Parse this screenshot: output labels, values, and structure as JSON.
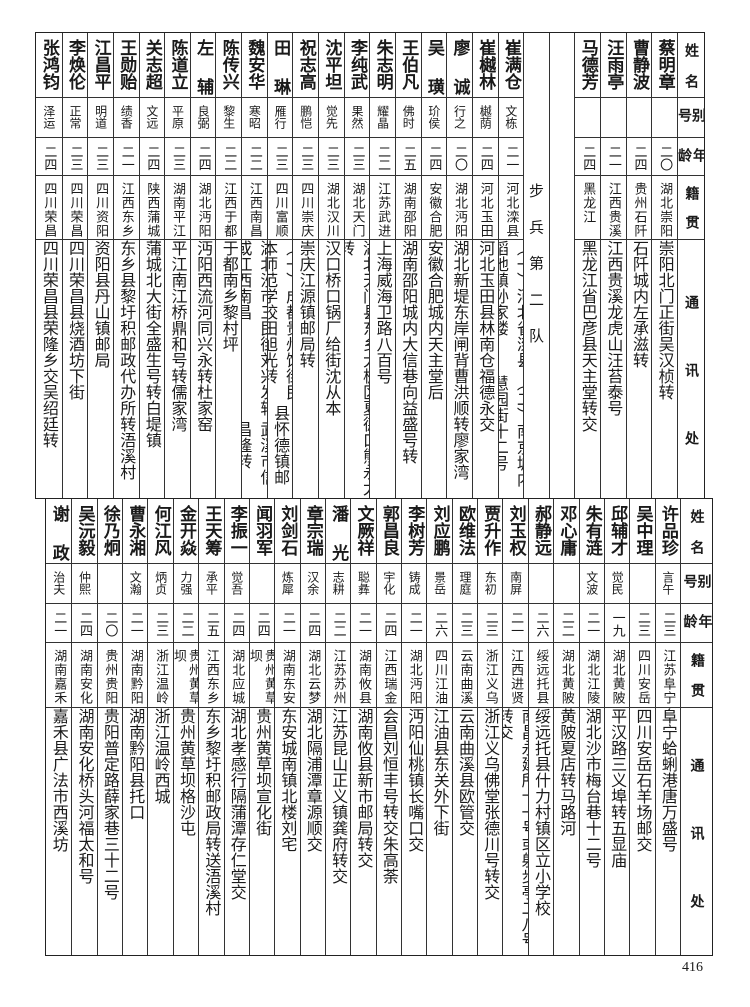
{
  "header": {
    "name": "姓名",
    "alias": "别号",
    "age": "年龄",
    "native": "籍贯",
    "address": "通讯处"
  },
  "top": {
    "section_label": "步兵第二队",
    "rows_before_section": [
      {
        "name": "蔡明章",
        "alias": "",
        "age": "二〇",
        "native": "湖北崇阳",
        "address": [
          "崇阳北门正街吴汉桢转"
        ]
      },
      {
        "name": "曹静波",
        "alias": "",
        "age": "二四",
        "native": "贵州石阡",
        "address": [
          "石阡城内左承滋转"
        ]
      },
      {
        "name": "汪雨亭",
        "alias": "",
        "age": "二一",
        "native": "江西贵溪",
        "address": [
          "江西贵溪龙虎山汪苔泰号"
        ]
      },
      {
        "name": "马德芳",
        "alias": "",
        "age": "二四",
        "native": "黑龙江",
        "address": [
          "黑龙江省巴彦县天主堂转交"
        ]
      }
    ],
    "rows_after_section": [
      {
        "name": "崔满仓",
        "alias": "文栋",
        "age": "二一",
        "native": "河北滦县",
        "address": [
          "（一）河北省滦县稻地镇孙家楼",
          "（二）南京城内慧园街十二号"
        ]
      },
      {
        "name": "崔樾林",
        "alias": "樾荫",
        "age": "二四",
        "native": "河北玉田",
        "address": [
          "河北玉田县林南仓福德永交"
        ]
      },
      {
        "name": "廖诚",
        "alias": "行之",
        "age": "二〇",
        "native": "湖北沔阳",
        "address": [
          "湖北新堤东岸闸背曹洪顺转廖家湾"
        ]
      },
      {
        "name": "吴璜",
        "alias": "玠侯",
        "age": "二四",
        "native": "安徽合肥",
        "address": [
          "安徽合肥城内天主堂后"
        ]
      },
      {
        "name": "王伯凡",
        "alias": "佛时",
        "age": "二五",
        "native": "湖南邵阳",
        "address": [
          "湖南邵阳城内大信巷向益盛号转"
        ]
      },
      {
        "name": "朱志明",
        "alias": "耀晶",
        "age": "二二",
        "native": "江苏武进",
        "address": [
          "上海威海卫路八百号"
        ]
      },
      {
        "name": "李纯武",
        "alias": "果然",
        "age": "二三",
        "native": "湖北天门",
        "address": [
          "湖北天门县东乡大板区夏德口熊永太转"
        ]
      },
      {
        "name": "沈平坦",
        "alias": "觉先",
        "age": "二三",
        "native": "湖北汉川",
        "address": [
          "汉口桥口锅厂给街沈从本"
        ]
      },
      {
        "name": "祝志高",
        "alias": "鹏恺",
        "age": "二三",
        "native": "四川崇庆",
        "address": [
          "崇庆江源镇邮局转"
        ]
      },
      {
        "name": "田琳",
        "alias": "雁行",
        "age": "二三",
        "native": "四川富顺",
        "address": [
          "（一）成都贵州馆街民本师范学校田旭光转",
          "（二）富顺县怀德镇邮转"
        ]
      },
      {
        "name": "魏安华",
        "alias": "寒昭",
        "age": "二二",
        "native": "江西南昌",
        "address": [
          "湖北沙市三民街刘兴发转或江西南昌",
          "武溪市信昌隆转"
        ]
      },
      {
        "name": "陈传兴",
        "alias": "黎生",
        "age": "二二",
        "native": "江西于都",
        "address": [
          "于都南乡黎村坪"
        ]
      },
      {
        "name": "左辅",
        "alias": "良弼",
        "age": "二四",
        "native": "湖北沔阳",
        "address": [
          "沔阳西流河同兴永转杜家窑"
        ]
      },
      {
        "name": "陈道立",
        "alias": "平原",
        "age": "二三",
        "native": "湖南平江",
        "address": [
          "平江南江桥鼎和号转儒家湾"
        ]
      },
      {
        "name": "关志超",
        "alias": "文远",
        "age": "二四",
        "native": "陕西蒲城",
        "address": [
          "蒲城北大街全盛生号转白堤镇"
        ]
      },
      {
        "name": "王勋贻",
        "alias": "绩香",
        "age": "二一",
        "native": "江西东乡",
        "address": [
          "东乡县黎圩积邮政代办所转浯溪村"
        ]
      },
      {
        "name": "江昌平",
        "alias": "明道",
        "age": "二三",
        "native": "四川资阳",
        "address": [
          "资阳县丹山镇邮局"
        ]
      },
      {
        "name": "李焕伦",
        "alias": "正常",
        "age": "二三",
        "native": "四川荣昌",
        "address": [
          "四川荣昌县烧酒坊下街"
        ]
      },
      {
        "name": "张鸿钧",
        "alias": "泽运",
        "age": "二四",
        "native": "四川荣昌",
        "address": [
          "四川荣昌县荣隆乡交吴绍廷转"
        ]
      }
    ]
  },
  "bottom": {
    "rows": [
      {
        "name": "许品珍",
        "alias": "言午",
        "age": "二三",
        "native": "江苏阜宁",
        "address": [
          "阜宁蛤蜊港唐万盛号"
        ]
      },
      {
        "name": "吴中理",
        "alias": "",
        "age": "二三",
        "native": "四川安岳",
        "address": [
          "四川安岳石羊场邮交"
        ]
      },
      {
        "name": "邱辅才",
        "alias": "觉民",
        "age": "一九",
        "native": "湖北黄陂",
        "address": [
          "平汉路三义埠转五显庙"
        ]
      },
      {
        "name": "朱有涟",
        "alias": "文波",
        "age": "二一",
        "native": "湖北江陵",
        "address": [
          "湖北沙市梅台巷十二号"
        ]
      },
      {
        "name": "邓心庸",
        "alias": "",
        "age": "二二",
        "native": "湖北黄陂",
        "address": [
          "黄陂夏店转马路河"
        ]
      },
      {
        "name": "郝静远",
        "alias": "",
        "age": "二六",
        "native": "绥远托县",
        "address": [
          "绥远托县什力村镇区立小学校"
        ]
      },
      {
        "name": "刘玉权",
        "alias": "南屏",
        "age": "二一",
        "native": "江西进贤",
        "address": [
          "南昌永建所十一号或射步亭二八号转交"
        ]
      },
      {
        "name": "贾升作",
        "alias": "东初",
        "age": "二三",
        "native": "浙江义乌",
        "address": [
          "浙江义乌佛堂张德川号转交"
        ]
      },
      {
        "name": "欧维法",
        "alias": "理庭",
        "age": "二三",
        "native": "云南曲溪",
        "address": [
          "云南曲溪县欧管交"
        ]
      },
      {
        "name": "刘应鹏",
        "alias": "景岳",
        "age": "二六",
        "native": "四川江油",
        "address": [
          "江油县东关外下街"
        ]
      },
      {
        "name": "李树芳",
        "alias": "铸成",
        "age": "二一",
        "native": "湖北沔阳",
        "address": [
          "沔阳仙桃镇长嘴口交"
        ]
      },
      {
        "name": "郭昌良",
        "alias": "宇化",
        "age": "二四",
        "native": "江西瑞金",
        "address": [
          "会昌刘恒丰号转交朱高荼"
        ]
      },
      {
        "name": "文厥祥",
        "alias": "聪彝",
        "age": "二一",
        "native": "湖南攸县",
        "address": [
          "湖南攸县新市邮局转交"
        ]
      },
      {
        "name": "潘光",
        "alias": "志耕",
        "age": "二二",
        "native": "江苏苏州",
        "address": [
          "江苏昆山正义镇龚府转交"
        ]
      },
      {
        "name": "章宗瑞",
        "alias": "汉余",
        "age": "二四",
        "native": "湖北云梦",
        "address": [
          "湖北隔浦潭章源顺交"
        ]
      },
      {
        "name": "刘剑石",
        "alias": "炼犀",
        "age": "二一",
        "native": "湖南东安",
        "address": [
          "东安城南镇北楼刘宅"
        ]
      },
      {
        "name": "闻羽军",
        "alias": "",
        "age": "二四",
        "native": "贵州黄草坝",
        "address": [
          "贵州黄草坝宣化街"
        ]
      },
      {
        "name": "李振一",
        "alias": "觉吾",
        "age": "二四",
        "native": "湖北应城",
        "address": [
          "湖北孝感行隔蒲潭存仁堂交"
        ]
      },
      {
        "name": "王天筹",
        "alias": "承平",
        "age": "二五",
        "native": "江西东乡",
        "address": [
          "东乡黎圩积邮政局转送浯溪村"
        ]
      },
      {
        "name": "金开焱",
        "alias": "力强",
        "age": "二二",
        "native": "贵州黄草坝",
        "address": [
          "贵州黄草坝格沙屯"
        ]
      },
      {
        "name": "何江风",
        "alias": "炳贞",
        "age": "二三",
        "native": "浙江温岭",
        "address": [
          "浙江温岭西城"
        ]
      },
      {
        "name": "曹永湘",
        "alias": "文瀚",
        "age": "二一",
        "native": "湖南黔阳",
        "address": [
          "湖南黔阳县托口"
        ]
      },
      {
        "name": "徐乃炯",
        "alias": "",
        "age": "二〇",
        "native": "贵州贵阳",
        "address": [
          "贵阳普定路薛家巷三十二号"
        ]
      },
      {
        "name": "吴沅毅",
        "alias": "仲熙",
        "age": "二四",
        "native": "湖南安化",
        "address": [
          "湖南安化桥头河福太和号"
        ]
      },
      {
        "name": "谢政",
        "alias": "治夫",
        "age": "二一",
        "native": "湖南嘉禾",
        "address": [
          "嘉禾县广法市西溪坊"
        ]
      }
    ]
  },
  "page_number": "416"
}
